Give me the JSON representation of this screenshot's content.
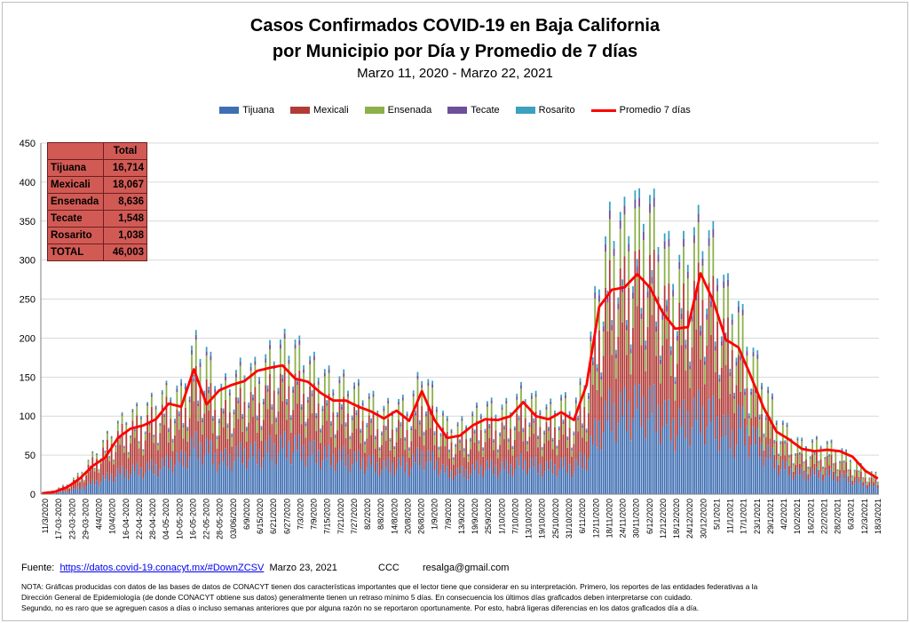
{
  "title_line1": "Casos Confirmados COVID-19 en Baja California",
  "title_line2": "por Municipio por Día y Promedio de 7 días",
  "subtitle": "Marzo 11, 2020  - Marzo 22, 2021",
  "legend": [
    {
      "label": "Tijuana",
      "color": "#3f6fb3"
    },
    {
      "label": "Mexicali",
      "color": "#b33b37"
    },
    {
      "label": "Ensenada",
      "color": "#8cb04a"
    },
    {
      "label": "Tecate",
      "color": "#6e4f9a"
    },
    {
      "label": "Rosarito",
      "color": "#3aa1be"
    },
    {
      "label": "Promedio 7 días",
      "color": "#ff0000"
    }
  ],
  "totals_table": {
    "header": "Total",
    "rows": [
      {
        "label": "Tijuana",
        "value": "16,714"
      },
      {
        "label": "Mexicali",
        "value": "18,067"
      },
      {
        "label": "Ensenada",
        "value": "8,636"
      },
      {
        "label": "Tecate",
        "value": "1,548"
      },
      {
        "label": "Rosarito",
        "value": "1,038"
      },
      {
        "label": "TOTAL",
        "value": "46,003"
      }
    ]
  },
  "chart_data": {
    "type": "bar",
    "stacked": true,
    "ylim": [
      0,
      450
    ],
    "yticks": [
      0,
      50,
      100,
      150,
      200,
      250,
      300,
      350,
      400,
      450
    ],
    "grid": true,
    "legend_position": "top",
    "xtick_labels": [
      "11/3/2020",
      "17-03-2020",
      "23-03-2020",
      "29-03-2020",
      "4/4/2020",
      "10/4/2020",
      "16-04-2020",
      "22-04-2020",
      "28-04-2020",
      "04-05-2020",
      "10-05-2020",
      "16-05-2020",
      "22-05-2020",
      "28-05-2020",
      "03/06/2020",
      "6/9/2020",
      "6/15/2020",
      "6/21/2020",
      "6/27/2020",
      "7/3/2020",
      "7/9/2020",
      "7/15/2020",
      "7/21/2020",
      "7/27/2020",
      "8/2/2020",
      "8/8/2020",
      "14/8/2020",
      "20/8/2020",
      "26/8/2020",
      "1/9/2020",
      "7/9/2020",
      "13/9/2020",
      "19/9/2020",
      "25/9/2020",
      "1/10/2020",
      "7/10/2020",
      "13/10/2020",
      "19/10/2020",
      "25/10/2020",
      "31/10/2020",
      "6/11/2020",
      "12/11/2020",
      "18/11/2020",
      "24/11/2020",
      "30/11/2020",
      "6/12/2020",
      "12/12/2020",
      "18/12/2020",
      "24/12/2020",
      "30/12/2020",
      "5/1/2021",
      "11/1/2021",
      "17/1/2021",
      "23/1/2021",
      "29/1/2021",
      "4/2/2021",
      "10/2/2021",
      "16/2/2021",
      "22/2/2021",
      "28/2/2021",
      "6/3/2021",
      "12/3/2021",
      "18/3/2021"
    ],
    "series_names": [
      "Tijuana",
      "Mexicali",
      "Ensenada",
      "Tecate",
      "Rosarito"
    ],
    "series_share": {
      "period_1": [
        0.34,
        0.52,
        0.1,
        0.02,
        0.02
      ],
      "period_2": [
        0.38,
        0.4,
        0.16,
        0.03,
        0.03
      ],
      "period_3": [
        0.36,
        0.44,
        0.14,
        0.03,
        0.03
      ],
      "period_4": [
        0.46,
        0.26,
        0.22,
        0.03,
        0.03
      ]
    },
    "daily_total_weekly": [
      1,
      5,
      12,
      24,
      44,
      62,
      80,
      92,
      96,
      108,
      118,
      118,
      170,
      160,
      118,
      130,
      145,
      140,
      158,
      170,
      168,
      152,
      140,
      128,
      128,
      118,
      108,
      96,
      104,
      100,
      138,
      112,
      80,
      78,
      90,
      102,
      96,
      100,
      118,
      106,
      96,
      108,
      98,
      140,
      250,
      310,
      305,
      335,
      325,
      290,
      250,
      280,
      300,
      280,
      230,
      210,
      165,
      130,
      90,
      70,
      58,
      60,
      58,
      52,
      40,
      28,
      22
    ],
    "avg_7day": [
      1,
      3,
      9,
      20,
      36,
      47,
      72,
      84,
      88,
      96,
      116,
      112,
      160,
      115,
      133,
      140,
      145,
      158,
      162,
      165,
      148,
      144,
      130,
      120,
      120,
      112,
      106,
      97,
      107,
      94,
      132,
      95,
      72,
      75,
      88,
      96,
      95,
      100,
      118,
      100,
      96,
      105,
      95,
      140,
      240,
      262,
      265,
      282,
      265,
      233,
      212,
      214,
      283,
      248,
      198,
      188,
      150,
      110,
      80,
      70,
      58,
      55,
      57,
      55,
      48,
      30,
      20
    ]
  },
  "footer": {
    "source_label": "Fuente:",
    "source_link": "https://datos.covid-19.conacyt.mx/#DownZCSV",
    "source_date": "Marzo 23, 2021",
    "ccc": "CCC",
    "email": "resalga@gmail.com",
    "note_line1": "NOTA: Gráficas producidas con datos de las bases de datos de CONACYT tienen dos características importantes que el lector tiene que considerar en su interpretación. Primero, los reportes de las entidades federativas a la",
    "note_line2": "Dirección General de Epidemiología (de donde CONACYT obtiene sus datos) generalmente tienen un retraso mínimo 5 días. En consecuencia los últimos días graficados deben interpretarse con cuidado.",
    "note_line3": "Segundo, no es raro que se agreguen casos a días o incluso semanas anteriores que por alguna razón no se reportaron oportunamente. Por esto, habrá ligeras diferencias en los datos graficados día a día."
  }
}
